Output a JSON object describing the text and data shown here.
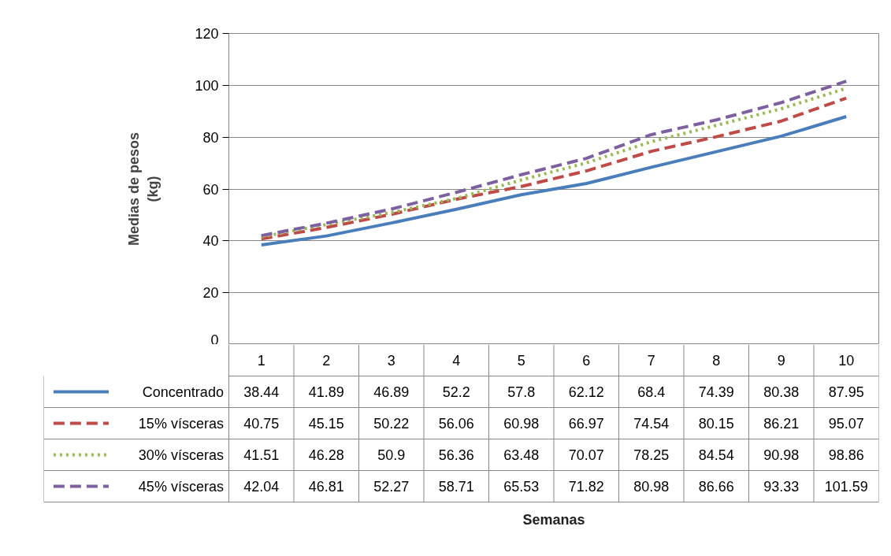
{
  "chart_data": {
    "type": "line",
    "annotations": [
      "Semanas"
    ],
    "ylabel": "Medias de pesos\n(kg)",
    "categories": [
      "1",
      "2",
      "3",
      "4",
      "5",
      "6",
      "7",
      "8",
      "9",
      "10"
    ],
    "series": [
      {
        "name": "Concentrado",
        "color": "#4a7ebb",
        "line_style": "solid",
        "values": [
          38.44,
          41.89,
          46.89,
          52.2,
          57.8,
          62.12,
          68.4,
          74.39,
          80.38,
          87.95
        ]
      },
      {
        "name": "15% vísceras",
        "color": "#be4b48",
        "line_style": "dashed",
        "values": [
          40.75,
          45.15,
          50.22,
          56.06,
          60.98,
          66.97,
          74.54,
          80.15,
          86.21,
          95.07
        ]
      },
      {
        "name": "30% vísceras",
        "color": "#98b954",
        "line_style": "dotted",
        "values": [
          41.51,
          46.28,
          50.9,
          56.36,
          63.48,
          70.07,
          78.25,
          84.54,
          90.98,
          98.86
        ]
      },
      {
        "name": "45% vísceras",
        "color": "#7d60a0",
        "line_style": "dashed",
        "values": [
          42.04,
          46.81,
          52.27,
          58.71,
          65.53,
          71.82,
          80.98,
          86.66,
          93.33,
          101.59
        ]
      }
    ],
    "ylim": [
      0,
      120
    ],
    "yticks": [
      0,
      20,
      40,
      60,
      80,
      100,
      120
    ],
    "grid": "y",
    "legend": "bottom",
    "data_labels": true
  }
}
